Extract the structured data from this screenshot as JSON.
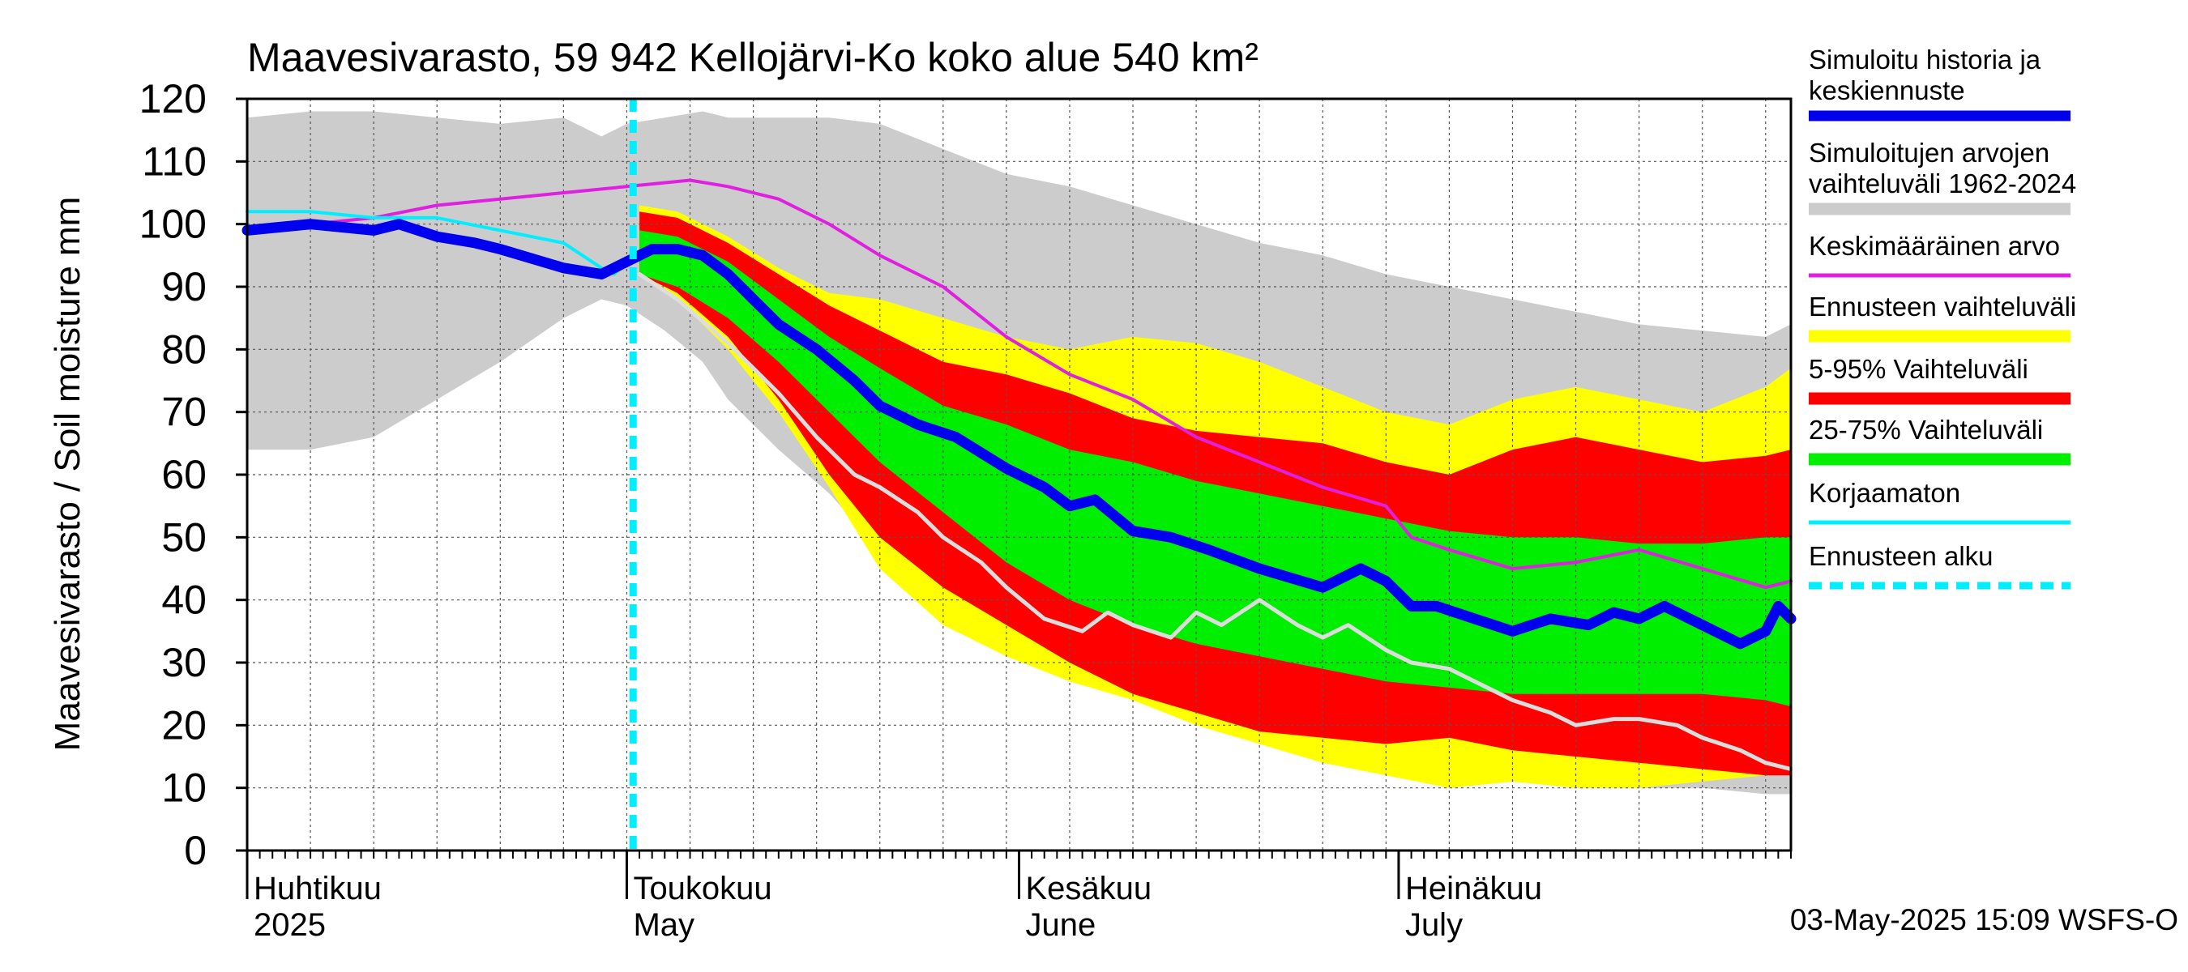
{
  "chart_data": {
    "type": "area",
    "title": "Maavesivarasto, 59 942 Kellojärvi-Ko koko alue 540 km²",
    "ylabel": "Maavesivarasto / Soil moisture   mm",
    "ylim": [
      0,
      120
    ],
    "yticks": [
      0,
      10,
      20,
      30,
      40,
      50,
      60,
      70,
      80,
      90,
      100,
      110,
      120
    ],
    "xlim_days": [
      0,
      122
    ],
    "month_labels": [
      {
        "day": 0,
        "fi": "Huhtikuu",
        "en": "2025"
      },
      {
        "day": 30,
        "fi": "Toukokuu",
        "en": "May"
      },
      {
        "day": 61,
        "fi": "Kesäkuu",
        "en": "June"
      },
      {
        "day": 91,
        "fi": "Heinäkuu",
        "en": "July"
      }
    ],
    "forecast_start_day": 30.5,
    "footer": "03-May-2025 15:09 WSFS-O",
    "legend": [
      {
        "label1": "Simuloitu historia ja",
        "label2": "keskiennuste",
        "color": "#0000ee",
        "style": "thick"
      },
      {
        "label1": "Simuloitujen arvojen",
        "label2": "vaihteluväli 1962-2024",
        "color": "#cccccc",
        "style": "band"
      },
      {
        "label1": "Keskimääräinen arvo",
        "label2": "",
        "color": "#e020e0",
        "style": "line"
      },
      {
        "label1": "Ennusteen vaihteluväli",
        "label2": "",
        "color": "#ffff00",
        "style": "band"
      },
      {
        "label1": "5-95% Vaihteluväli",
        "label2": "",
        "color": "#ff0000",
        "style": "band"
      },
      {
        "label1": "25-75% Vaihteluväli",
        "label2": "",
        "color": "#00ee00",
        "style": "band"
      },
      {
        "label1": "Korjaamaton",
        "label2": "",
        "color": "#00eeff",
        "style": "line"
      },
      {
        "label1": "Ennusteen alku",
        "label2": "",
        "color": "#00eeff",
        "style": "dash"
      }
    ],
    "series": {
      "hist_range": {
        "x": [
          0,
          5,
          10,
          15,
          20,
          25,
          28,
          30,
          33,
          36,
          38,
          42,
          46,
          50,
          55,
          60,
          65,
          70,
          75,
          80,
          85,
          90,
          95,
          100,
          105,
          110,
          115,
          120,
          122
        ],
        "lo": [
          64,
          64,
          66,
          72,
          78,
          85,
          88,
          87,
          83,
          78,
          72,
          64,
          57,
          48,
          40,
          33,
          28,
          24,
          21,
          18,
          16,
          14,
          13,
          12,
          11,
          10,
          10,
          9,
          9
        ],
        "hi": [
          117,
          118,
          118,
          117,
          116,
          117,
          114,
          116,
          117,
          118,
          117,
          117,
          117,
          116,
          112,
          108,
          106,
          103,
          100,
          97,
          95,
          92,
          90,
          88,
          86,
          84,
          83,
          82,
          84
        ]
      },
      "yellow": {
        "x": [
          31,
          34,
          38,
          42,
          46,
          50,
          55,
          60,
          65,
          70,
          75,
          80,
          85,
          90,
          95,
          100,
          105,
          110,
          115,
          120,
          122
        ],
        "lo": [
          92,
          88,
          80,
          70,
          58,
          45,
          36,
          31,
          27,
          24,
          20,
          17,
          14,
          12,
          10,
          11,
          10,
          10,
          11,
          12,
          13
        ],
        "hi": [
          103,
          102,
          98,
          93,
          89,
          88,
          85,
          82,
          80,
          82,
          81,
          78,
          74,
          70,
          68,
          72,
          74,
          72,
          70,
          74,
          77
        ]
      },
      "red": {
        "x": [
          31,
          34,
          38,
          42,
          46,
          50,
          55,
          60,
          65,
          70,
          75,
          80,
          85,
          90,
          95,
          100,
          105,
          110,
          115,
          120,
          122
        ],
        "lo": [
          92,
          89,
          82,
          72,
          60,
          50,
          42,
          36,
          30,
          25,
          22,
          19,
          18,
          17,
          18,
          16,
          15,
          14,
          13,
          12,
          12
        ],
        "hi": [
          102,
          101,
          97,
          92,
          87,
          83,
          78,
          76,
          73,
          69,
          67,
          66,
          65,
          62,
          60,
          64,
          66,
          64,
          62,
          63,
          64
        ]
      },
      "green": {
        "x": [
          31,
          34,
          38,
          42,
          46,
          50,
          55,
          60,
          65,
          70,
          75,
          80,
          85,
          90,
          95,
          100,
          105,
          110,
          115,
          120,
          122
        ],
        "lo": [
          92,
          90,
          85,
          78,
          70,
          62,
          54,
          46,
          40,
          36,
          33,
          31,
          29,
          27,
          26,
          25,
          25,
          25,
          25,
          24,
          23
        ],
        "hi": [
          99,
          98,
          94,
          88,
          82,
          77,
          71,
          68,
          64,
          62,
          59,
          57,
          55,
          53,
          51,
          50,
          50,
          49,
          49,
          50,
          50
        ]
      },
      "median": {
        "x": [
          0,
          5,
          10,
          12,
          15,
          18,
          20,
          25,
          28,
          29,
          30,
          31,
          32,
          34,
          36,
          38,
          40,
          42,
          45,
          48,
          50,
          53,
          56,
          60,
          63,
          65,
          67,
          70,
          73,
          76,
          80,
          85,
          88,
          90,
          92,
          94,
          97,
          100,
          103,
          106,
          108,
          110,
          112,
          114,
          116,
          118,
          120,
          121,
          122
        ],
        "y": [
          99,
          100,
          99,
          100,
          98,
          97,
          96,
          93,
          92,
          93,
          94,
          95,
          96,
          96,
          95,
          92,
          88,
          84,
          80,
          75,
          71,
          68,
          66,
          61,
          58,
          55,
          56,
          51,
          50,
          48,
          45,
          42,
          45,
          43,
          39,
          39,
          37,
          35,
          37,
          36,
          38,
          37,
          39,
          37,
          35,
          33,
          35,
          39,
          37
        ]
      },
      "mean": {
        "x": [
          0,
          5,
          10,
          15,
          20,
          25,
          30,
          35,
          38,
          42,
          46,
          50,
          55,
          60,
          65,
          70,
          75,
          80,
          85,
          90,
          92,
          95,
          100,
          105,
          110,
          115,
          120,
          122
        ],
        "y": [
          99,
          100,
          101,
          103,
          104,
          105,
          106,
          107,
          106,
          104,
          100,
          95,
          90,
          82,
          76,
          72,
          66,
          62,
          58,
          55,
          50,
          48,
          45,
          46,
          48,
          45,
          42,
          43
        ]
      },
      "uncorrected": {
        "x": [
          0,
          5,
          10,
          15,
          20,
          25,
          28,
          29,
          30
        ],
        "y": [
          102,
          102,
          101,
          101,
          99,
          97,
          93,
          92,
          94
        ]
      },
      "grey_line": {
        "x": [
          31,
          34,
          38,
          42,
          45,
          48,
          50,
          53,
          55,
          58,
          60,
          63,
          66,
          68,
          70,
          73,
          75,
          77,
          80,
          83,
          85,
          87,
          90,
          92,
          95,
          98,
          100,
          103,
          105,
          108,
          110,
          113,
          115,
          118,
          120,
          122
        ],
        "y": [
          92,
          88,
          81,
          73,
          66,
          60,
          58,
          54,
          50,
          46,
          42,
          37,
          35,
          38,
          36,
          34,
          38,
          36,
          40,
          36,
          34,
          36,
          32,
          30,
          29,
          26,
          24,
          22,
          20,
          21,
          21,
          20,
          18,
          16,
          14,
          13
        ]
      }
    }
  }
}
